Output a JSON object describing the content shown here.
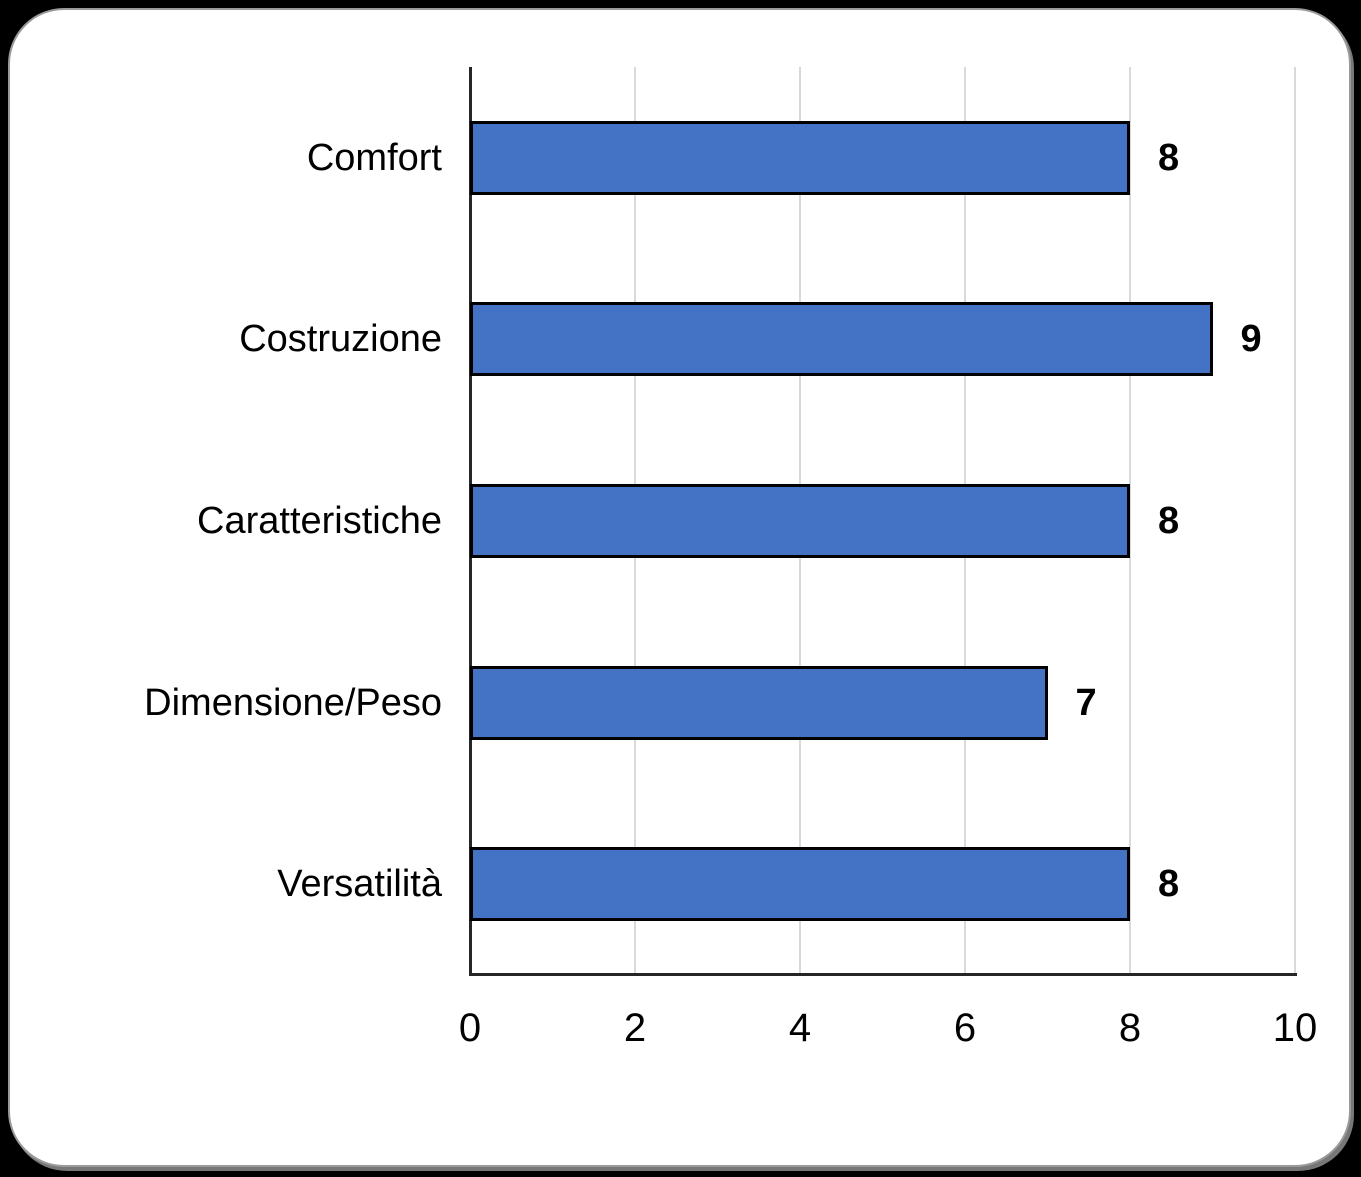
{
  "page": {
    "background_color": "#000000",
    "card_background_color": "#ffffff",
    "card_border_color": "#9a9a9a"
  },
  "chart_data": {
    "type": "bar",
    "orientation": "horizontal",
    "title": "",
    "xlabel": "",
    "ylabel": "",
    "categories": [
      "Comfort",
      "Costruzione",
      "Caratteristiche",
      "Dimensione/Peso",
      "Versatilità"
    ],
    "values": [
      8,
      9,
      8,
      7,
      8
    ],
    "data_labels": [
      "8",
      "9",
      "8",
      "7",
      "8"
    ],
    "xlim": [
      0,
      10
    ],
    "xticks": [
      0,
      2,
      4,
      6,
      8,
      10
    ],
    "grid": true,
    "legend": "none",
    "bar_color": "#4472C4",
    "bar_border_color": "#000000",
    "gridline_color": "#D9D9D9",
    "axis_line_color": "#262626",
    "label_color": "#000000"
  }
}
